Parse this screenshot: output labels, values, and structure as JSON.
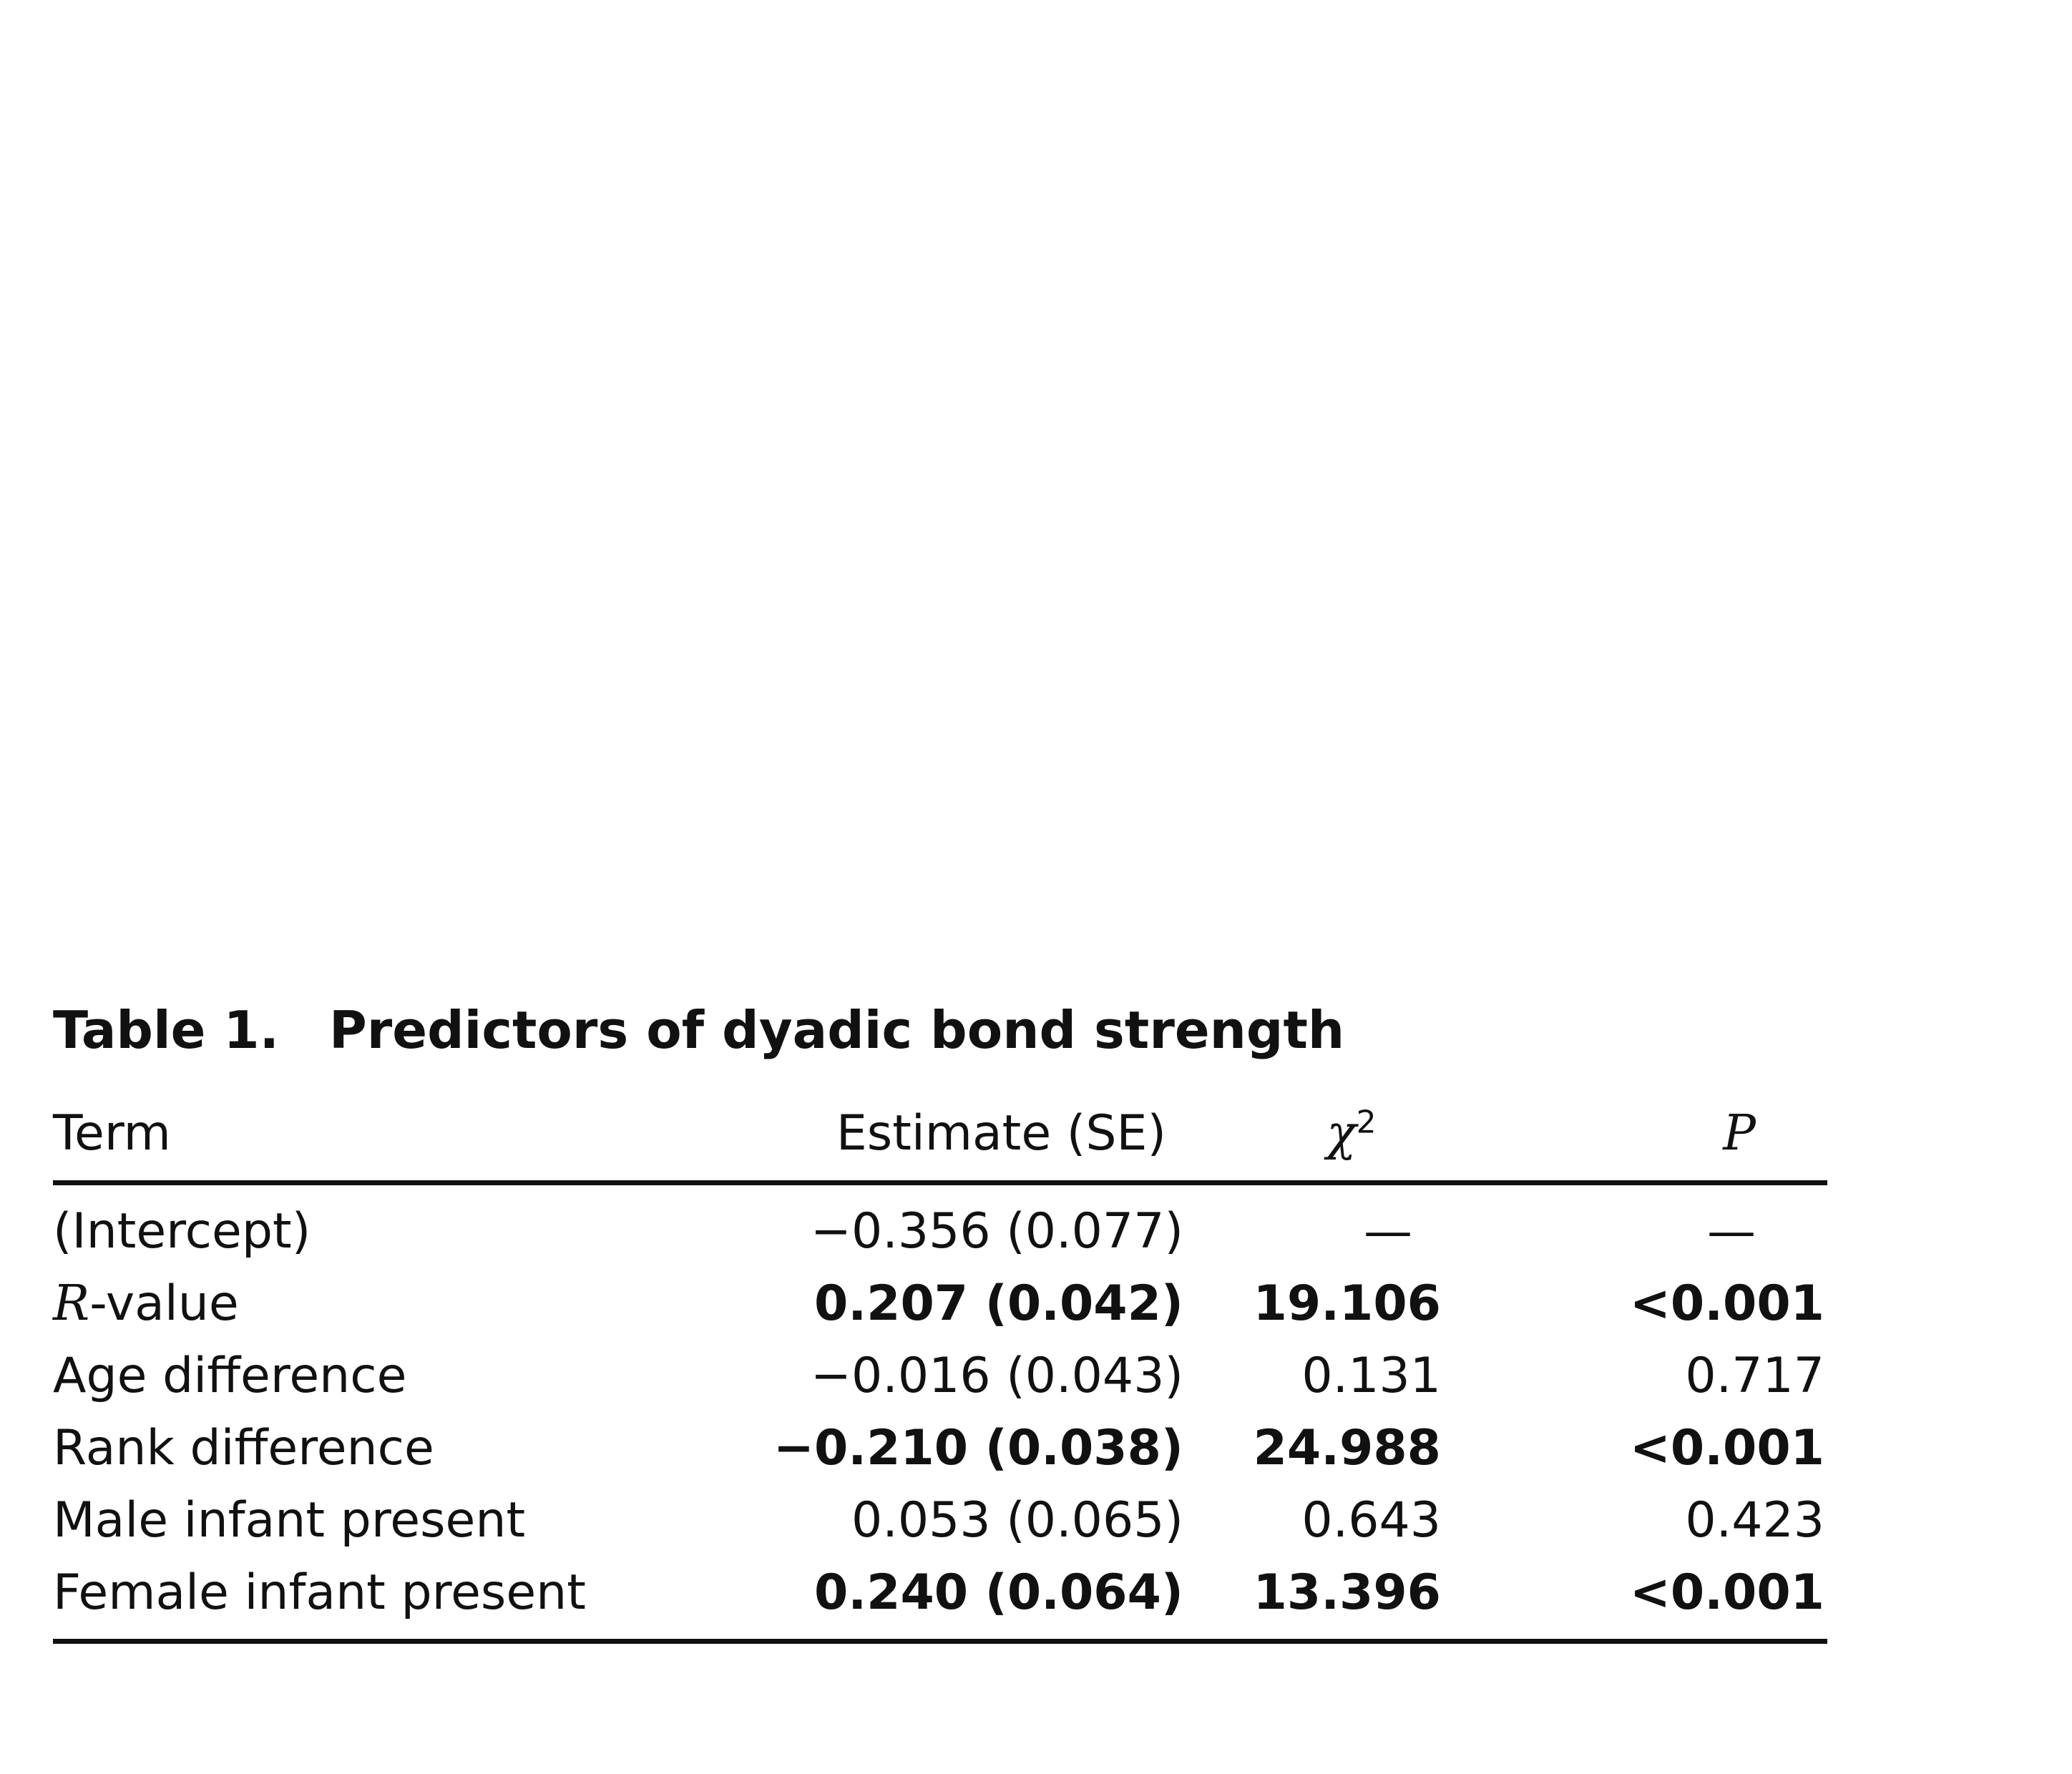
{
  "table": {
    "caption_label": "Table 1.",
    "caption_title": "Predictors of dyadic bond strength",
    "headers": {
      "term": "Term",
      "estimate": "Estimate (SE)",
      "chi_symbol": "χ",
      "chi_sup": "2",
      "p": "P"
    },
    "rows": [
      {
        "term": "(Intercept)",
        "estimate": "−0.356 (0.077)",
        "chi2": "—",
        "p": "—",
        "bold": false
      },
      {
        "term_italic": "R",
        "term_rest": "-value",
        "estimate": "0.207 (0.042)",
        "chi2": "19.106",
        "p": "<0.001",
        "bold": true
      },
      {
        "term": "Age difference",
        "estimate": "−0.016 (0.043)",
        "chi2": "0.131",
        "p": "0.717",
        "bold": false
      },
      {
        "term": "Rank difference",
        "estimate": "−0.210 (0.038)",
        "chi2": "24.988",
        "p": "<0.001",
        "bold": true
      },
      {
        "term": "Male infant present",
        "estimate": "0.053 (0.065)",
        "chi2": "0.643",
        "p": "0.423",
        "bold": false
      },
      {
        "term": "Female infant present",
        "estimate": "0.240 (0.064)",
        "chi2": "13.396",
        "p": "<0.001",
        "bold": true
      }
    ]
  }
}
